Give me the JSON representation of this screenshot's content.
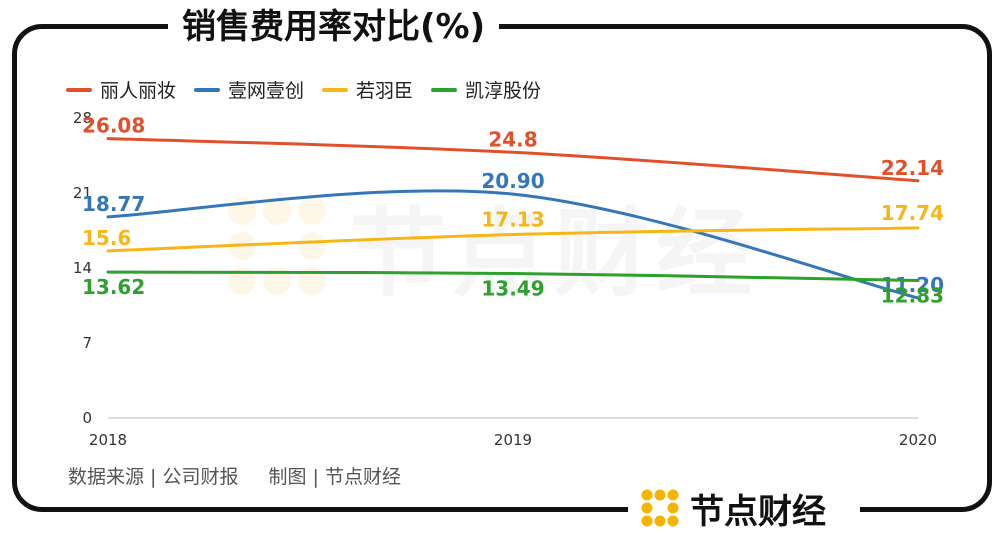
{
  "title": "销售费用率对比(%)",
  "source": {
    "left": "数据来源 | 公司财报",
    "right": "制图 | 节点财经"
  },
  "brand": {
    "name": "节点财经",
    "logo_color": "#f5b400"
  },
  "watermark": "节点财经",
  "chart_data": {
    "type": "line",
    "title": "销售费用率对比(%)",
    "categories": [
      "2018",
      "2019",
      "2020"
    ],
    "ylim": [
      0,
      28
    ],
    "yticks": [
      0,
      7,
      14,
      21,
      28
    ],
    "xlabel": "",
    "ylabel": "",
    "grid": false,
    "legend_position": "top-left",
    "series": [
      {
        "name": "丽人丽妆",
        "color": "#e0512b",
        "values": [
          26.08,
          24.8,
          22.14
        ],
        "labels": [
          "26.08",
          "24.8",
          "22.14"
        ]
      },
      {
        "name": "壹网壹创",
        "color": "#3477b8",
        "values": [
          18.77,
          20.9,
          11.2
        ],
        "labels": [
          "18.77",
          "20.90",
          "11.20"
        ]
      },
      {
        "name": "若羽臣",
        "color": "#f6b716",
        "values": [
          15.6,
          17.13,
          17.74
        ],
        "labels": [
          "15.6",
          "17.13",
          "17.74"
        ]
      },
      {
        "name": "凯淳股份",
        "color": "#2ea02c",
        "values": [
          13.62,
          13.49,
          12.83
        ],
        "labels": [
          "13.62",
          "13.49",
          "12.83"
        ]
      }
    ]
  }
}
